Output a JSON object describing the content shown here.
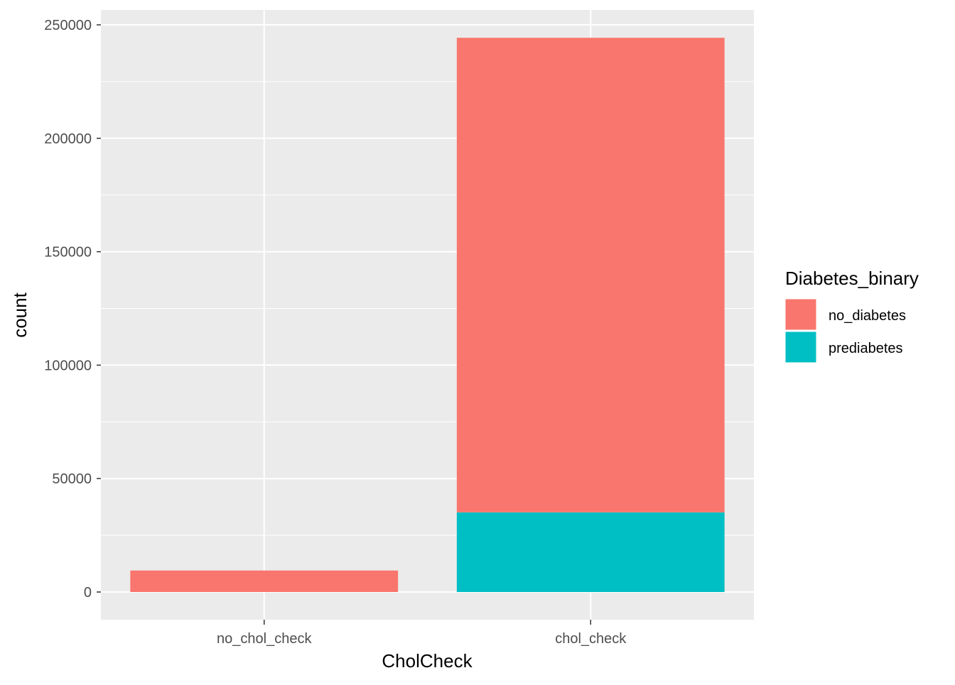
{
  "chart_data": {
    "type": "bar",
    "stacked": true,
    "categories": [
      "no_chol_check",
      "chol_check"
    ],
    "series": [
      {
        "name": "no_diabetes",
        "color": "#F8766D",
        "values": [
          9470,
          209200
        ]
      },
      {
        "name": "prediabetes",
        "color": "#00BFC4",
        "values": [
          0,
          35100
        ]
      }
    ],
    "xlabel": "CholCheck",
    "ylabel": "count",
    "ylim": [
      -12000,
      257000
    ],
    "yticks": [
      0,
      50000,
      100000,
      150000,
      200000,
      250000
    ],
    "ytick_labels": [
      "0",
      "50000",
      "100000",
      "150000",
      "200000",
      "250000"
    ],
    "legend": {
      "title": "Diabetes_binary",
      "position": "right",
      "entries": [
        "no_diabetes",
        "prediabetes"
      ]
    },
    "grid": true,
    "panel_background": "#EBEBEB",
    "grid_color": "#FFFFFF"
  }
}
